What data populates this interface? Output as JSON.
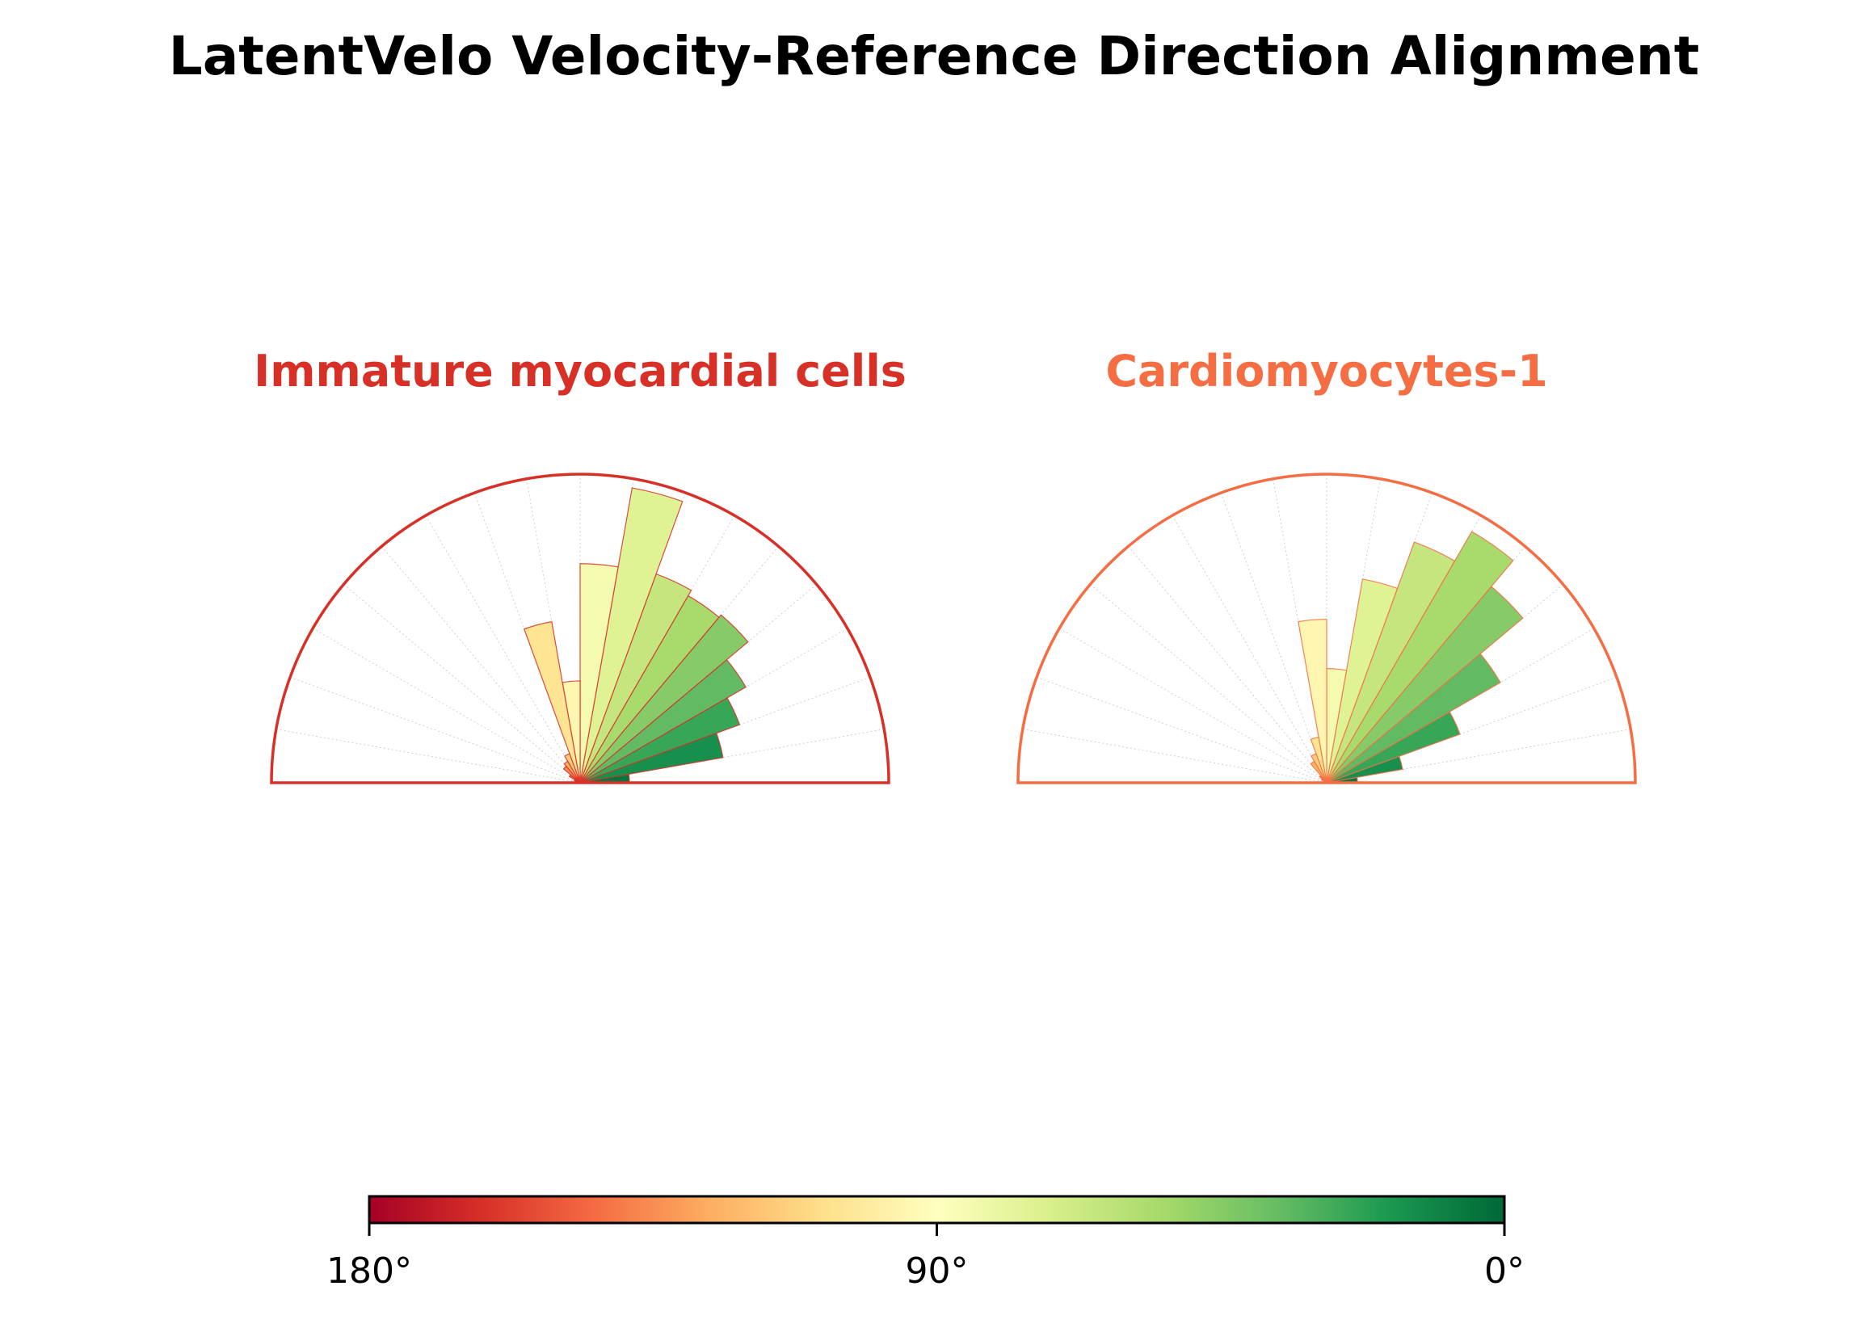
{
  "title": "LatentVelo Velocity-Reference Direction Alignment",
  "chart_data": {
    "type": "polar-histogram",
    "angle_unit": "degrees",
    "angle_range": [
      0,
      180
    ],
    "bin_width_deg": 10,
    "bin_centers_deg": [
      5,
      15,
      25,
      35,
      45,
      55,
      65,
      75,
      85,
      95,
      105,
      115,
      125,
      135,
      145,
      155,
      165,
      175
    ],
    "panels": [
      {
        "title": "Immature myocardial cells",
        "color": "#d73027",
        "max_value": 1.0,
        "values": [
          0.16,
          0.47,
          0.55,
          0.62,
          0.71,
          0.7,
          0.72,
          0.97,
          0.71,
          0.33,
          0.53,
          0.1,
          0.08,
          0.07,
          0.04,
          0.02,
          0.01,
          0.01
        ]
      },
      {
        "title": "Cardiomyocytes-1",
        "color": "#f46d43",
        "max_value": 1.0,
        "values": [
          0.1,
          0.25,
          0.46,
          0.65,
          0.83,
          0.94,
          0.83,
          0.67,
          0.37,
          0.53,
          0.15,
          0.1,
          0.08,
          0.03,
          0.02,
          0.01,
          0.01,
          0.01
        ]
      }
    ],
    "colorbar": {
      "colormap": "RdYlGn",
      "range_deg": [
        180,
        0
      ],
      "ticks": [
        "180°",
        "90°",
        "0°"
      ]
    }
  }
}
